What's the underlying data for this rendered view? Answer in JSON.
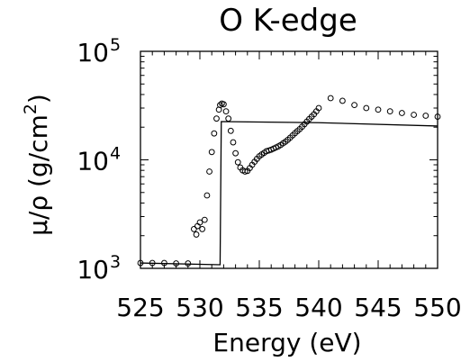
{
  "chart_data": {
    "type": "scatter",
    "title": "O K-edge",
    "xlabel": "Energy (eV)",
    "ylabel": {
      "base": "μ/ρ (g/cm",
      "sup": "2",
      "end": ")"
    },
    "xlim": [
      525,
      550
    ],
    "ylim": [
      1000,
      100000
    ],
    "yscale": "log",
    "x_ticks": [
      525,
      530,
      535,
      540,
      545,
      550
    ],
    "x_tick_labels": [
      "525",
      "530",
      "535",
      "540",
      "545",
      "550"
    ],
    "y_ticks": [
      1000,
      10000,
      100000
    ],
    "y_tick_labels": [
      {
        "base": "10",
        "exp": "3"
      },
      {
        "base": "10",
        "exp": "4"
      },
      {
        "base": "10",
        "exp": "5"
      }
    ],
    "grid": false,
    "series": [
      {
        "style": "line",
        "color": "#000000",
        "points": [
          [
            525,
            1120
          ],
          [
            531.7,
            1080
          ],
          [
            531.8,
            22500
          ],
          [
            540,
            22000
          ],
          [
            550,
            20500
          ]
        ]
      },
      {
        "style": "markers",
        "marker": "open-circle",
        "color": "#000000",
        "points": [
          [
            525.0,
            1120
          ],
          [
            526.0,
            1120
          ],
          [
            527.0,
            1120
          ],
          [
            528.0,
            1110
          ],
          [
            529.0,
            1110
          ],
          [
            529.5,
            2300
          ],
          [
            529.7,
            2050
          ],
          [
            529.8,
            2450
          ],
          [
            530.0,
            2650
          ],
          [
            530.2,
            2300
          ],
          [
            530.4,
            2800
          ],
          [
            530.6,
            4700
          ],
          [
            530.8,
            7800
          ],
          [
            531.0,
            11800
          ],
          [
            531.2,
            17500
          ],
          [
            531.4,
            24000
          ],
          [
            531.6,
            29000
          ],
          [
            531.7,
            32000
          ],
          [
            531.85,
            33000
          ],
          [
            532.0,
            32500
          ],
          [
            532.2,
            28000
          ],
          [
            532.4,
            24000
          ],
          [
            532.6,
            18500
          ],
          [
            532.8,
            14500
          ],
          [
            533.0,
            11500
          ],
          [
            533.2,
            9500
          ],
          [
            533.4,
            8500
          ],
          [
            533.6,
            8000
          ],
          [
            533.8,
            7800
          ],
          [
            534.0,
            7900
          ],
          [
            534.2,
            8400
          ],
          [
            534.4,
            9000
          ],
          [
            534.6,
            9600
          ],
          [
            534.8,
            10200
          ],
          [
            535.0,
            10800
          ],
          [
            535.2,
            11200
          ],
          [
            535.4,
            11600
          ],
          [
            535.6,
            12000
          ],
          [
            535.8,
            12200
          ],
          [
            536.0,
            12400
          ],
          [
            536.2,
            12700
          ],
          [
            536.4,
            13000
          ],
          [
            536.6,
            13300
          ],
          [
            536.8,
            13700
          ],
          [
            537.0,
            14200
          ],
          [
            537.2,
            14700
          ],
          [
            537.4,
            15300
          ],
          [
            537.6,
            16000
          ],
          [
            537.8,
            16800
          ],
          [
            538.0,
            17600
          ],
          [
            538.2,
            18400
          ],
          [
            538.4,
            19200
          ],
          [
            538.6,
            20200
          ],
          [
            538.8,
            21300
          ],
          [
            539.0,
            22500
          ],
          [
            539.2,
            23800
          ],
          [
            539.4,
            25000
          ],
          [
            539.6,
            26300
          ],
          [
            539.8,
            28000
          ],
          [
            540.0,
            30000
          ],
          [
            541.0,
            37000
          ],
          [
            542.0,
            35000
          ],
          [
            543.0,
            32000
          ],
          [
            544.0,
            30000
          ],
          [
            545.0,
            29000
          ],
          [
            546.0,
            28000
          ],
          [
            547.0,
            27000
          ],
          [
            548.0,
            26000
          ],
          [
            549.0,
            25500
          ],
          [
            550.0,
            25000
          ]
        ]
      }
    ]
  }
}
